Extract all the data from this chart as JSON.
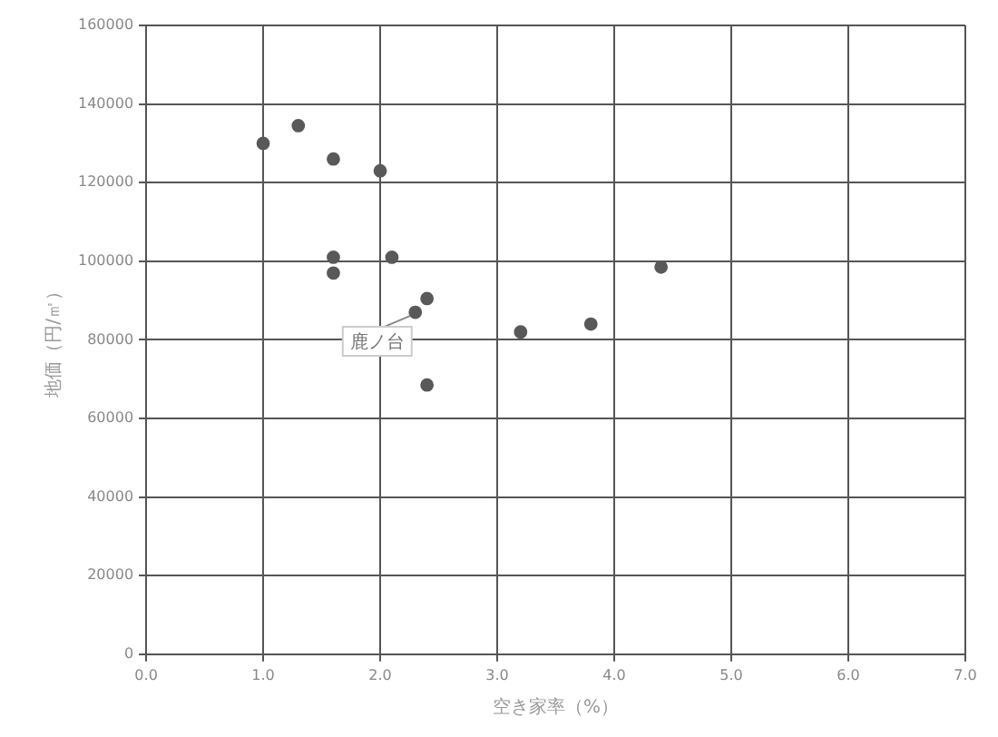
{
  "chart_data": {
    "type": "scatter",
    "xlabel": "空き家率（%）",
    "ylabel": "地価（円/㎡）",
    "series": [
      {
        "color": "#595959",
        "x": [
          1.0,
          1.3,
          1.6,
          2.0,
          1.6,
          2.1,
          1.6,
          2.4,
          2.3,
          2.4,
          3.2,
          3.8,
          4.4
        ],
        "values": [
          130000,
          134500,
          126000,
          123000,
          101000,
          101000,
          97000,
          90500,
          87000,
          68500,
          82000,
          84000,
          98500
        ]
      }
    ],
    "xlim": [
      0,
      7
    ],
    "xticks": [
      {
        "value": 0,
        "label": "0.0"
      },
      {
        "value": 1,
        "label": "1.0"
      },
      {
        "value": 2,
        "label": "2.0"
      },
      {
        "value": 3,
        "label": "3.0"
      },
      {
        "value": 4,
        "label": "4.0"
      },
      {
        "value": 5,
        "label": "5.0"
      },
      {
        "value": 6,
        "label": "6.0"
      },
      {
        "value": 7,
        "label": "7.0"
      }
    ],
    "ylim": [
      0,
      160000
    ],
    "yticks": [
      0,
      20000,
      40000,
      60000,
      80000,
      100000,
      120000,
      140000,
      160000
    ],
    "grid": true,
    "legend": false,
    "marker": "circle",
    "annotations": [
      {
        "text": "鹿ノ台",
        "x": 2.3,
        "y": 87000
      }
    ]
  }
}
